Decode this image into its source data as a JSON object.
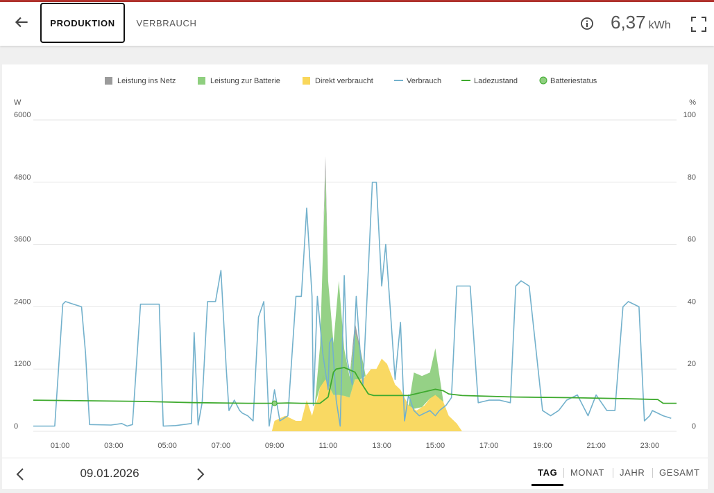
{
  "header": {
    "tabs": [
      {
        "label": "PRODUKTION",
        "active": true
      },
      {
        "label": "VERBRAUCH",
        "active": false
      }
    ],
    "energy_value": "6,37",
    "energy_unit": "kWh",
    "icons": {
      "back": "arrow-left-icon",
      "info": "info-icon",
      "fullscreen": "fullscreen-icon"
    }
  },
  "colors": {
    "netz": "#9b9b9b",
    "batterie": "#8fcf7f",
    "direkt": "#f9d75b",
    "verbrauch": "#73b1cc",
    "ladezustand": "#3eaa2e",
    "batteriestatus": "#8fcf7f"
  },
  "chart_data": {
    "type": "area",
    "legend": [
      "Leistung ins Netz",
      "Leistung zur Batterie",
      "Direkt verbraucht",
      "Verbrauch",
      "Ladezustand",
      "Batteriestatus"
    ],
    "left_unit": "W",
    "right_unit": "%",
    "yticks_left": [
      "6000",
      "4800",
      "3600",
      "2400",
      "1200",
      "0"
    ],
    "yticks_right": [
      "100",
      "80",
      "60",
      "40",
      "20",
      "0"
    ],
    "ylim_left": [
      0,
      6000
    ],
    "ylim_right": [
      0,
      100
    ],
    "xlim": [
      0,
      24
    ],
    "xticks": [
      "01:00",
      "03:00",
      "05:00",
      "07:00",
      "09:00",
      "11:00",
      "13:00",
      "15:00",
      "17:00",
      "19:00",
      "21:00",
      "23:00"
    ],
    "grid": true,
    "series": [
      {
        "name": "Verbrauch",
        "kind": "line",
        "x": [
          0,
          0.8,
          1.1,
          1.2,
          1.5,
          1.8,
          1.95,
          2.1,
          2.9,
          3.3,
          3.5,
          3.7,
          4.0,
          4.4,
          4.7,
          4.85,
          5.3,
          5.6,
          5.9,
          6.0,
          6.15,
          6.3,
          6.5,
          6.8,
          7.0,
          7.2,
          7.3,
          7.5,
          7.7,
          7.8,
          8.0,
          8.2,
          8.4,
          8.6,
          8.8,
          9.0,
          9.2,
          9.5,
          9.8,
          10.0,
          10.2,
          10.4,
          10.45,
          10.6,
          10.8,
          11.0,
          11.05,
          11.15,
          11.3,
          11.45,
          11.6,
          11.7,
          11.9,
          12.05,
          12.2,
          12.3,
          12.5,
          12.65,
          12.8,
          13.0,
          13.15,
          13.3,
          13.5,
          13.7,
          13.85,
          14.0,
          14.2,
          14.4,
          14.6,
          14.8,
          15.0,
          15.15,
          15.4,
          15.6,
          15.8,
          16.0,
          16.3,
          16.6,
          17.0,
          17.4,
          17.8,
          18.0,
          18.2,
          18.5,
          19.0,
          19.3,
          19.6,
          19.9,
          20.3,
          20.7,
          21.0,
          21.4,
          21.7,
          22.0,
          22.2,
          22.6,
          22.8,
          23.0,
          23.1,
          23.5,
          23.8
        ],
        "y": [
          100,
          100,
          2450,
          2500,
          2450,
          2400,
          1500,
          130,
          120,
          150,
          100,
          130,
          2450,
          2450,
          2450,
          100,
          110,
          130,
          150,
          1900,
          120,
          550,
          2500,
          2500,
          3100,
          1200,
          400,
          600,
          400,
          350,
          300,
          200,
          2200,
          2500,
          100,
          800,
          200,
          300,
          2600,
          2600,
          4300,
          2600,
          500,
          2600,
          1500,
          800,
          1700,
          1800,
          600,
          100,
          3000,
          1400,
          900,
          2600,
          1500,
          900,
          3100,
          4800,
          4800,
          2800,
          3600,
          2500,
          1000,
          2100,
          200,
          700,
          400,
          300,
          350,
          400,
          300,
          400,
          500,
          650,
          2800,
          2800,
          2800,
          550,
          600,
          600,
          550,
          2800,
          2900,
          2800,
          400,
          300,
          400,
          600,
          700,
          300,
          700,
          400,
          400,
          2400,
          2500,
          2400,
          200,
          300,
          400,
          300,
          250
        ]
      },
      {
        "name": "Ladezustand",
        "kind": "line",
        "axis": "right",
        "x": [
          0,
          2,
          4,
          6,
          8,
          9,
          9.5,
          10,
          10.7,
          11.0,
          11.2,
          11.3,
          11.6,
          12.0,
          12.2,
          12.5,
          12.7,
          12.9,
          13.5,
          14,
          14.5,
          15,
          15.3,
          15.5,
          16,
          18,
          20,
          22,
          23.3,
          23.5,
          24
        ],
        "y": [
          10.0,
          9.8,
          9.6,
          9.2,
          9.0,
          9.0,
          9.1,
          9.0,
          9.0,
          11.0,
          19.0,
          20.0,
          20.5,
          19.0,
          16.0,
          12.0,
          11.5,
          11.5,
          11.5,
          11.5,
          12.5,
          13.5,
          13.0,
          12.0,
          11.5,
          11.0,
          10.8,
          10.5,
          10.2,
          9.0,
          9.0
        ]
      },
      {
        "name": "Direkt verbraucht",
        "kind": "area",
        "x": [
          8.9,
          9.0,
          9.2,
          9.4,
          9.6,
          9.8,
          10.0,
          10.2,
          10.4,
          10.5,
          10.6,
          10.8,
          11.0,
          11.2,
          11.5,
          11.8,
          12.0,
          12.3,
          12.6,
          12.8,
          13.0,
          13.2,
          13.5,
          13.7,
          14.0,
          14.3,
          14.6,
          14.9,
          15.2,
          15.5,
          15.8,
          16.0,
          16.2
        ],
        "y": [
          0,
          200,
          250,
          300,
          250,
          200,
          200,
          600,
          300,
          500,
          600,
          1100,
          900,
          700,
          700,
          650,
          1000,
          1000,
          1200,
          1200,
          1400,
          1300,
          900,
          800,
          500,
          400,
          500,
          700,
          700,
          300,
          150,
          0,
          0
        ]
      },
      {
        "name": "Leistung zur Batterie",
        "kind": "area",
        "x": [
          10.5,
          10.7,
          10.9,
          11.0,
          11.2,
          11.4,
          11.6,
          11.8,
          12.0,
          12.2,
          12.4,
          14.0,
          14.2,
          14.5,
          14.8,
          15.0,
          15.3
        ],
        "y": [
          0,
          800,
          4000,
          2000,
          1000,
          2200,
          900,
          400,
          900,
          600,
          0,
          0,
          700,
          600,
          500,
          900,
          0
        ]
      },
      {
        "name": "Leistung ins Netz",
        "kind": "area",
        "x": [
          10.8,
          10.9,
          11.0,
          11.8,
          12.0,
          12.1,
          12.3
        ],
        "y": [
          0,
          300,
          0,
          0,
          200,
          100,
          0
        ]
      },
      {
        "name": "Batteriestatus",
        "kind": "point",
        "axis": "right",
        "x": [
          9.0
        ],
        "y": [
          9.0
        ]
      }
    ]
  },
  "footer": {
    "date": "09.01.2026",
    "periods": [
      {
        "label": "TAG",
        "active": true
      },
      {
        "label": "MONAT",
        "active": false
      },
      {
        "label": "JAHR",
        "active": false
      },
      {
        "label": "GESAMT",
        "active": false
      }
    ],
    "icons": {
      "prev": "chevron-left-icon",
      "next": "chevron-right-icon"
    }
  }
}
